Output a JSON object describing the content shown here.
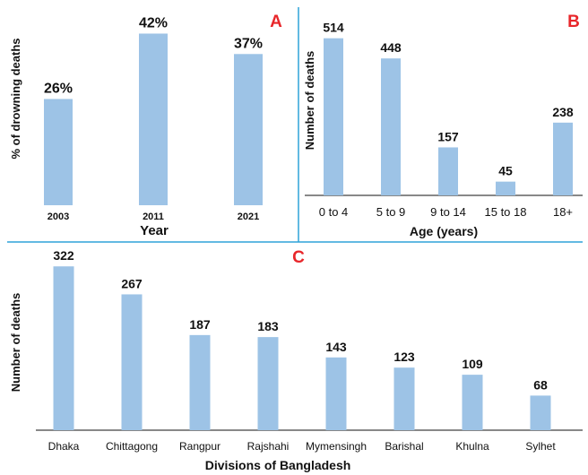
{
  "colors": {
    "bar": "#9dc3e6",
    "panel_letter": "#e8262a",
    "divider": "#2ea3d9",
    "text": "#111111"
  },
  "chart_data": [
    {
      "type": "bar",
      "panel": "A",
      "xlabel": "Year",
      "ylabel": "% of drowning deaths",
      "categories": [
        "2003",
        "2011",
        "2021"
      ],
      "values": [
        26,
        42,
        37
      ],
      "value_labels": [
        "26%",
        "42%",
        "37%"
      ],
      "ylim": [
        0,
        50
      ],
      "grid": false,
      "axes_visible": false
    },
    {
      "type": "bar",
      "panel": "B",
      "xlabel": "Age (years)",
      "ylabel": "Number of deaths",
      "categories": [
        "0 to 4",
        "5 to 9",
        "9 to 14",
        "15 to 18",
        "18+"
      ],
      "values": [
        514,
        448,
        157,
        45,
        238
      ],
      "value_labels": [
        "514",
        "448",
        "157",
        "45",
        "238"
      ],
      "ylim": [
        0,
        560
      ],
      "grid": false,
      "x_axis_line": true
    },
    {
      "type": "bar",
      "panel": "C",
      "xlabel": "Divisions of Bangladesh",
      "ylabel": "Number of deaths",
      "categories": [
        "Dhaka",
        "Chittagong",
        "Rangpur",
        "Rajshahi",
        "Mymensingh",
        "Barishal",
        "Khulna",
        "Sylhet"
      ],
      "values": [
        322,
        267,
        187,
        183,
        143,
        123,
        109,
        68
      ],
      "value_labels": [
        "322",
        "267",
        "187",
        "183",
        "143",
        "123",
        "109",
        "68"
      ],
      "ylim": [
        0,
        340
      ],
      "grid": false,
      "x_axis_line": true
    }
  ]
}
